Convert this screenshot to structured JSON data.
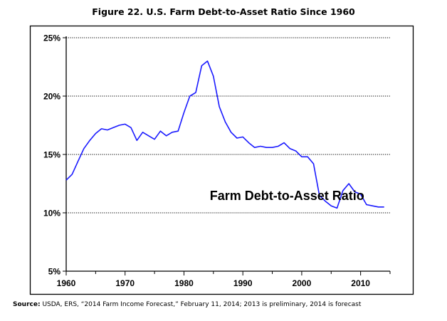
{
  "figure": {
    "title": "Figure 22. U.S. Farm Debt-to-Asset Ratio Since 1960",
    "source_label": "Source:",
    "source_text": "USDA, ERS, “2014 Farm Income Forecast,” February 11, 2014; 2013 is preliminary, 2014 is forecast"
  },
  "chart_data": {
    "type": "line",
    "title": "Figure 22. U.S. Farm Debt-to-Asset Ratio Since 1960",
    "xlabel": "",
    "ylabel": "",
    "xlim": [
      1960,
      2015
    ],
    "ylim": [
      5,
      25
    ],
    "grid": "horizontal dotted",
    "x_ticks": [
      1960,
      1970,
      1980,
      1990,
      2000,
      2010
    ],
    "x_tick_labels": [
      "1960",
      "1970",
      "1980",
      "1990",
      "2000",
      "2010"
    ],
    "y_ticks": [
      5,
      10,
      15,
      20,
      25
    ],
    "y_tick_labels": [
      "5%",
      "10%",
      "15%",
      "20%",
      "25%"
    ],
    "line_color": "#1a1aff",
    "annotations": [
      {
        "text": "Farm Debt-to-Asset Ratio",
        "x": 1997.5,
        "y": 11.1
      }
    ],
    "series": [
      {
        "x": [
          1960,
          1961,
          1962,
          1963,
          1964,
          1965,
          1966,
          1967,
          1968,
          1969,
          1970,
          1971,
          1972,
          1973,
          1974,
          1975,
          1976,
          1977,
          1978,
          1979,
          1980,
          1981,
          1982,
          1983,
          1984,
          1985,
          1986,
          1987,
          1988,
          1989,
          1990,
          1991,
          1992,
          1993,
          1994,
          1995,
          1996,
          1997,
          1998,
          1999,
          2000,
          2001,
          2002,
          2003,
          2004,
          2005,
          2006,
          2007,
          2008,
          2009,
          2010,
          2011,
          2012,
          2013,
          2014
        ],
        "y": [
          12.8,
          13.3,
          14.4,
          15.5,
          16.2,
          16.8,
          17.2,
          17.1,
          17.3,
          17.5,
          17.6,
          17.3,
          16.2,
          16.9,
          16.6,
          16.3,
          17.0,
          16.6,
          16.9,
          17.0,
          18.6,
          20.0,
          20.3,
          22.6,
          23.0,
          21.7,
          19.1,
          17.8,
          16.9,
          16.4,
          16.5,
          16.0,
          15.6,
          15.7,
          15.6,
          15.6,
          15.7,
          16.0,
          15.5,
          15.3,
          14.8,
          14.8,
          14.2,
          11.5,
          11.0,
          10.6,
          10.4,
          11.9,
          12.5,
          11.8,
          11.6,
          10.7,
          10.6,
          10.5,
          10.5
        ]
      }
    ]
  }
}
